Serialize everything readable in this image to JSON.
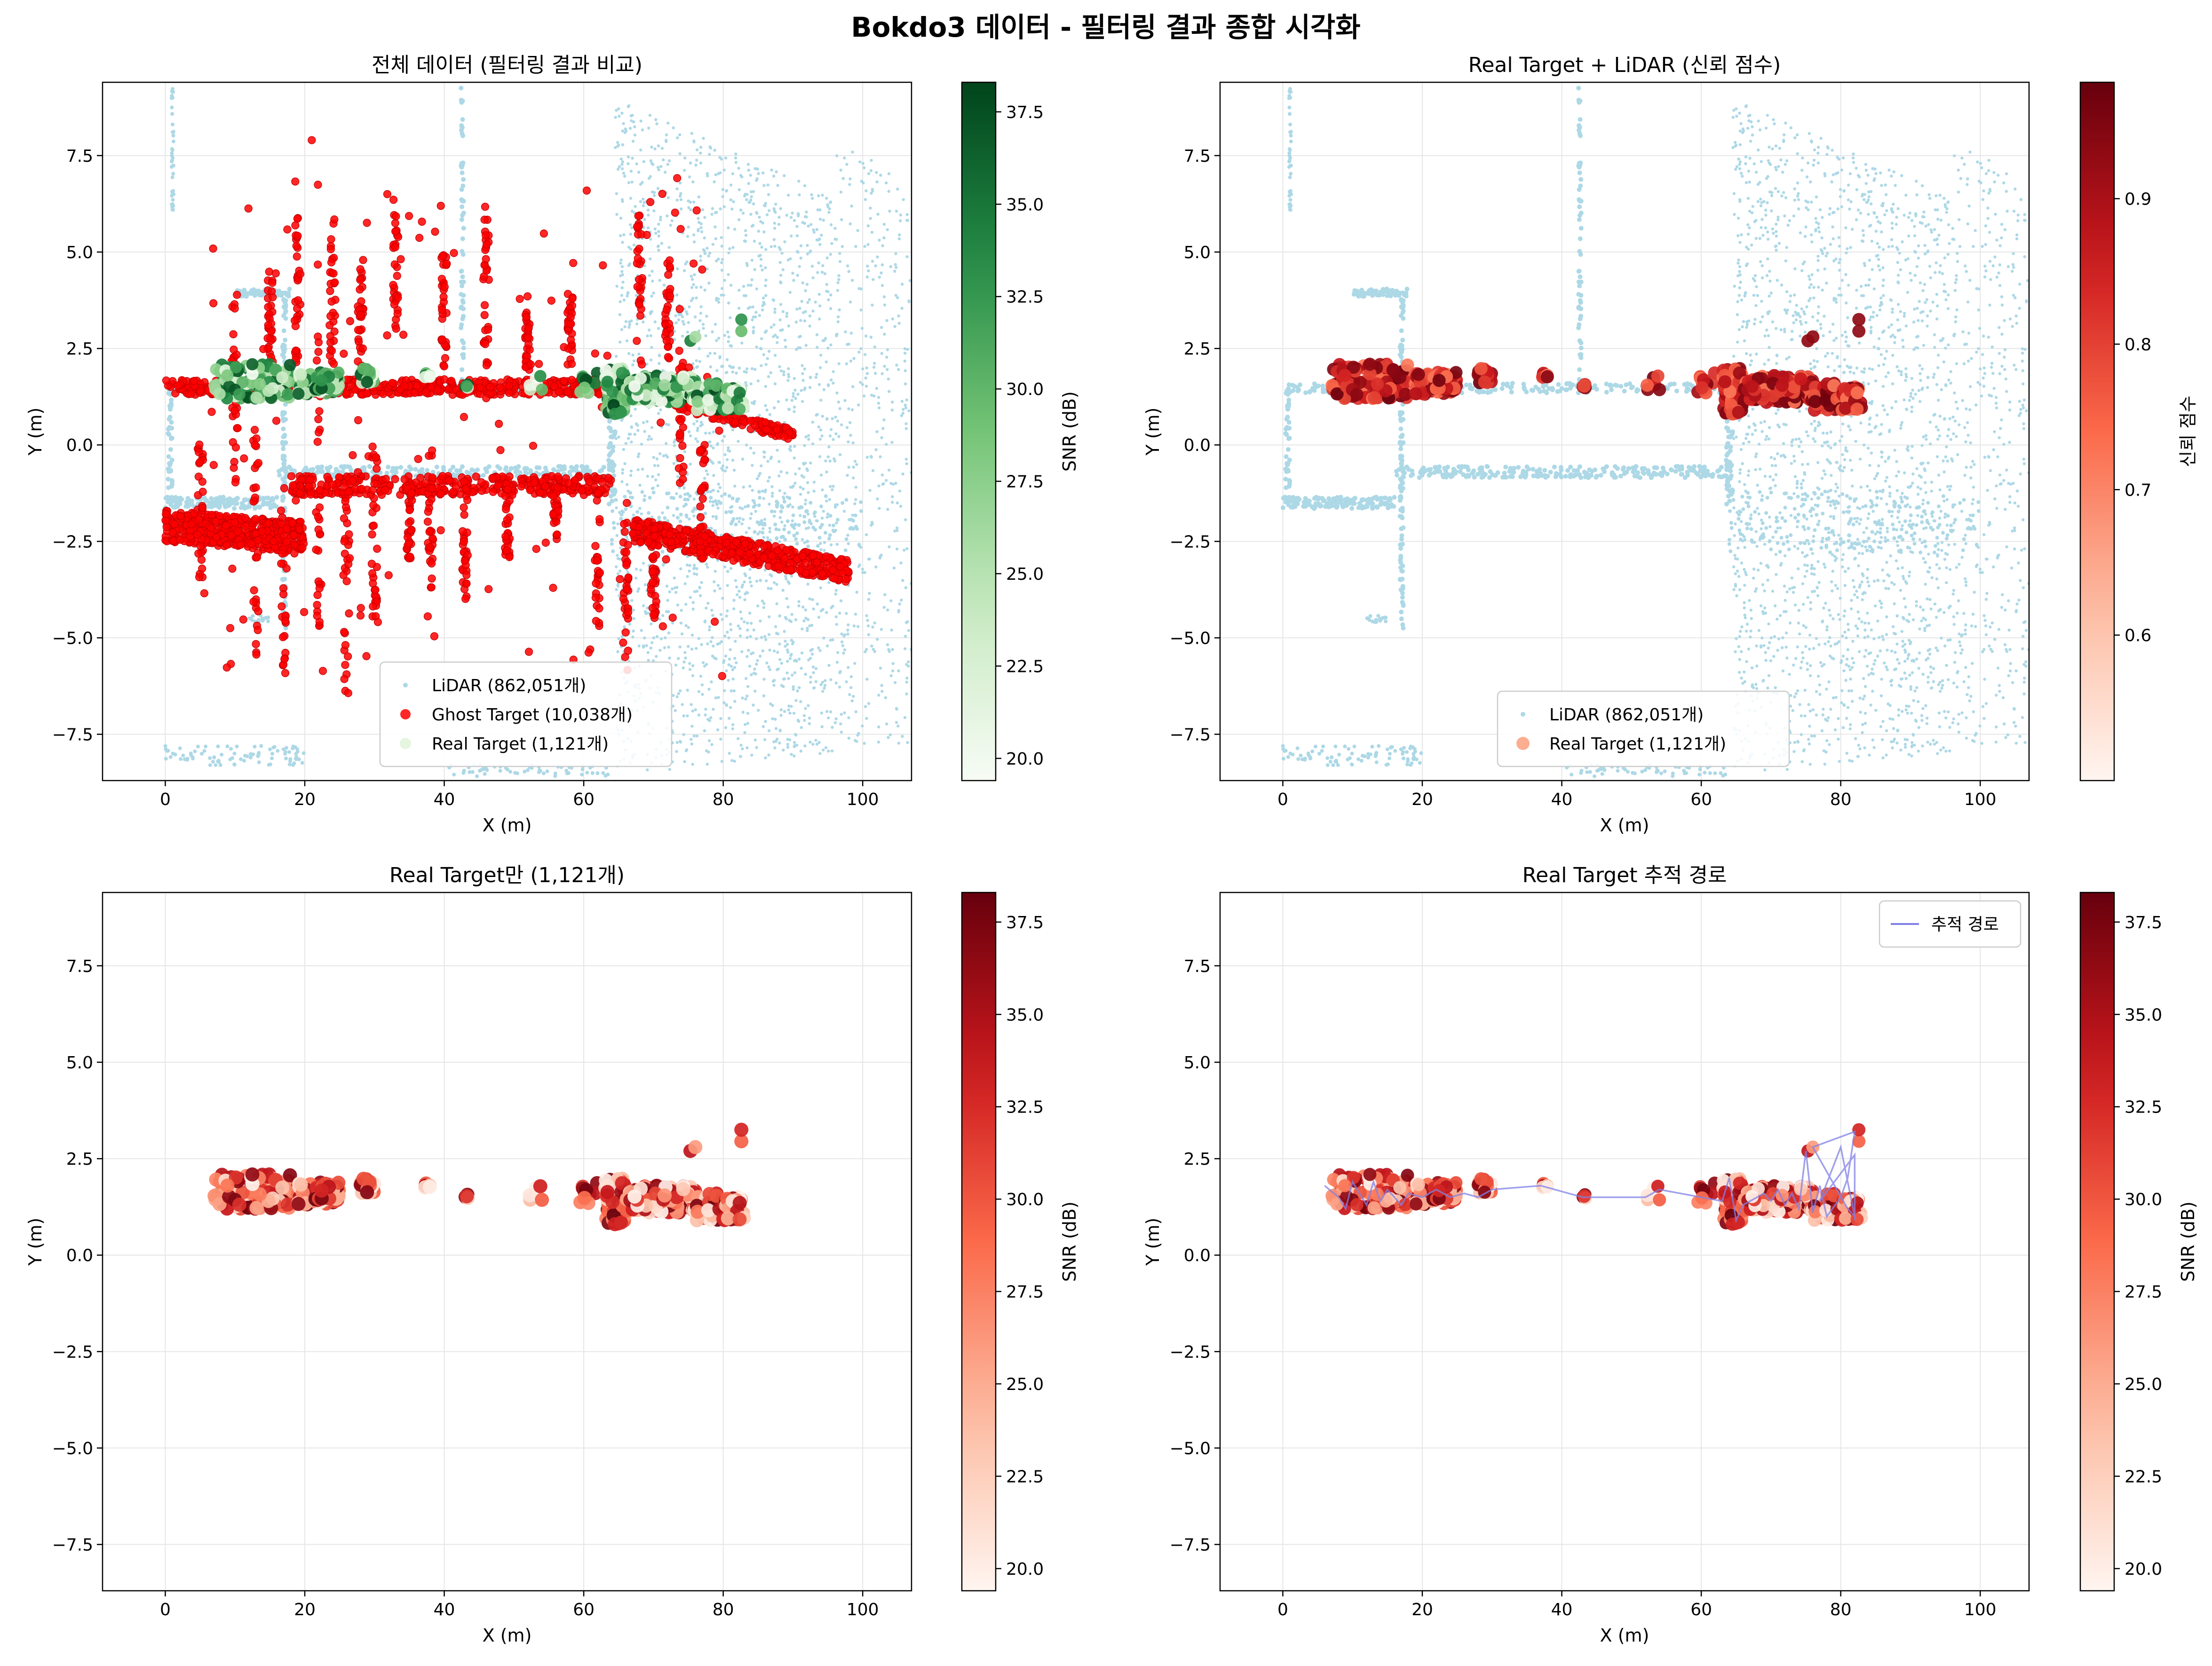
{
  "figure": {
    "title": "Bokdo3 데이터 - 필터링 결과 종합 시각화"
  },
  "colors": {
    "lidar": "#add8e6",
    "ghost": "#ff0000",
    "track_line": "#8080e6",
    "grid": "#e6e6e6"
  },
  "chart_data": [
    {
      "type": "scatter",
      "title": "전체 데이터 (필터링 결과 비교)",
      "xlabel": "X (m)",
      "ylabel": "Y (m)",
      "xlim": [
        -9,
        107
      ],
      "ylim": [
        -8.7,
        9.4
      ],
      "xticks": [
        "0",
        "20",
        "40",
        "60",
        "80",
        "100"
      ],
      "yticks": [
        "−7.5",
        "−5.0",
        "−2.5",
        "0.0",
        "2.5",
        "5.0",
        "7.5"
      ],
      "grid": true,
      "legend_position": "lower-center",
      "series": [
        {
          "name": "LiDAR (862,051개)",
          "color": "#add8e6"
        },
        {
          "name": "Ghost Target (10,038개)",
          "color": "#ff0000"
        },
        {
          "name": "Real Target (1,121개)",
          "color": "#e5f5e0"
        }
      ],
      "colorbar": {
        "label": "SNR (dB)",
        "cmap": "Greens",
        "range": [
          19.4,
          38.3
        ],
        "ticks": [
          "20.0",
          "22.5",
          "25.0",
          "27.5",
          "30.0",
          "32.5",
          "35.0",
          "37.5"
        ]
      }
    },
    {
      "type": "scatter",
      "title": "Real Target + LiDAR (신뢰 점수)",
      "xlabel": "X (m)",
      "ylabel": "Y (m)",
      "xlim": [
        -9,
        107
      ],
      "ylim": [
        -8.7,
        9.4
      ],
      "xticks": [
        "0",
        "20",
        "40",
        "60",
        "80",
        "100"
      ],
      "yticks": [
        "−7.5",
        "−5.0",
        "−2.5",
        "0.0",
        "2.5",
        "5.0",
        "7.5"
      ],
      "grid": true,
      "legend_position": "lower-center",
      "series": [
        {
          "name": "LiDAR (862,051개)",
          "color": "#add8e6"
        },
        {
          "name": "Real Target (1,121개)",
          "color": "#fcae91"
        }
      ],
      "colorbar": {
        "label": "신뢰 점수",
        "cmap": "Reds",
        "range": [
          0.5,
          0.98
        ],
        "ticks": [
          "0.6",
          "0.7",
          "0.8",
          "0.9"
        ]
      }
    },
    {
      "type": "scatter",
      "title": "Real Target만 (1,121개)",
      "xlabel": "X (m)",
      "ylabel": "Y (m)",
      "xlim": [
        -9,
        107
      ],
      "ylim": [
        -8.7,
        9.4
      ],
      "xticks": [
        "0",
        "20",
        "40",
        "60",
        "80",
        "100"
      ],
      "yticks": [
        "−7.5",
        "−5.0",
        "−2.5",
        "0.0",
        "2.5",
        "5.0",
        "7.5"
      ],
      "grid": true,
      "colorbar": {
        "label": "SNR (dB)",
        "cmap": "Reds",
        "range": [
          19.4,
          38.3
        ],
        "ticks": [
          "20.0",
          "22.5",
          "25.0",
          "27.5",
          "30.0",
          "32.5",
          "35.0",
          "37.5"
        ]
      }
    },
    {
      "type": "line",
      "title": "Real Target 추적 경로",
      "xlabel": "X (m)",
      "ylabel": "Y (m)",
      "xlim": [
        -9,
        107
      ],
      "ylim": [
        -8.7,
        9.4
      ],
      "xticks": [
        "0",
        "20",
        "40",
        "60",
        "80",
        "100"
      ],
      "yticks": [
        "−7.5",
        "−5.0",
        "−2.5",
        "0.0",
        "2.5",
        "5.0",
        "7.5"
      ],
      "grid": true,
      "legend_position": "top-right",
      "series": [
        {
          "name": "추적 경로",
          "color": "#8080e6"
        }
      ],
      "colorbar": {
        "label": "SNR (dB)",
        "cmap": "Reds",
        "range": [
          19.4,
          38.3
        ],
        "ticks": [
          "20.0",
          "22.5",
          "25.0",
          "27.5",
          "30.0",
          "32.5",
          "35.0",
          "37.5"
        ]
      },
      "path": [
        [
          6,
          1.8
        ],
        [
          8,
          1.5
        ],
        [
          9,
          1.2
        ],
        [
          10,
          1.9
        ],
        [
          11,
          1.6
        ],
        [
          12,
          1.3
        ],
        [
          13,
          1.9
        ],
        [
          14,
          1.4
        ],
        [
          15,
          1.7
        ],
        [
          16,
          1.5
        ],
        [
          17,
          1.3
        ],
        [
          18,
          1.6
        ],
        [
          20,
          1.5
        ],
        [
          22,
          1.7
        ],
        [
          24,
          1.5
        ],
        [
          26,
          1.6
        ],
        [
          28,
          1.5
        ],
        [
          30,
          1.7
        ],
        [
          37,
          1.8
        ],
        [
          43,
          1.5
        ],
        [
          52,
          1.5
        ],
        [
          54,
          1.7
        ],
        [
          60,
          1.5
        ],
        [
          63,
          1.4
        ],
        [
          64,
          2.0
        ],
        [
          65,
          0.9
        ],
        [
          66,
          1.3
        ],
        [
          68,
          1.5
        ],
        [
          69,
          1.6
        ],
        [
          70,
          1.4
        ],
        [
          71,
          1.7
        ],
        [
          72,
          1.3
        ],
        [
          73,
          1.6
        ],
        [
          74,
          1.2
        ],
        [
          75,
          2.7
        ],
        [
          76,
          1.1
        ],
        [
          77,
          1.8
        ],
        [
          78,
          1.0
        ],
        [
          80,
          1.5
        ],
        [
          81,
          2.0
        ],
        [
          82,
          3.2
        ],
        [
          76,
          2.8
        ],
        [
          81,
          1.2
        ],
        [
          82,
          1.0
        ],
        [
          80,
          2.8
        ],
        [
          77,
          1.4
        ],
        [
          82,
          2.6
        ],
        [
          82,
          0.9
        ]
      ]
    }
  ]
}
